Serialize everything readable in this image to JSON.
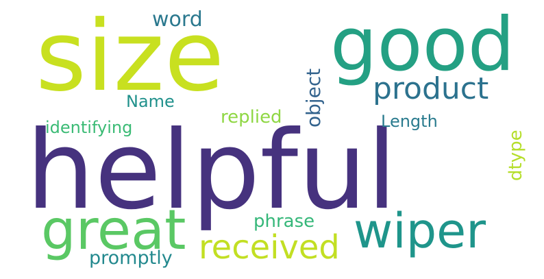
{
  "word_cloud": {
    "words": [
      {
        "key": "helpful",
        "text": "helpful",
        "color": "#46327e"
      },
      {
        "key": "size",
        "text": "size",
        "color": "#c8e020"
      },
      {
        "key": "good",
        "text": "good",
        "color": "#24a083"
      },
      {
        "key": "great",
        "text": "great",
        "color": "#5ac864"
      },
      {
        "key": "wiper",
        "text": "wiper",
        "color": "#1f958b"
      },
      {
        "key": "product",
        "text": "product",
        "color": "#2c728e"
      },
      {
        "key": "received",
        "text": "received",
        "color": "#c2df23"
      },
      {
        "key": "word",
        "text": "word",
        "color": "#2a788e"
      },
      {
        "key": "name",
        "text": "Name",
        "color": "#21918c"
      },
      {
        "key": "identifying",
        "text": "identifying",
        "color": "#3bbb75"
      },
      {
        "key": "replied",
        "text": "replied",
        "color": "#8fd744"
      },
      {
        "key": "length",
        "text": "Length",
        "color": "#2a7b8e"
      },
      {
        "key": "promptly",
        "text": "promptly",
        "color": "#23898e"
      },
      {
        "key": "phrase",
        "text": "phrase",
        "color": "#35b779"
      },
      {
        "key": "object",
        "text": "object",
        "color": "#33638d"
      },
      {
        "key": "dtype",
        "text": "dtype",
        "color": "#b5de2b"
      }
    ]
  }
}
